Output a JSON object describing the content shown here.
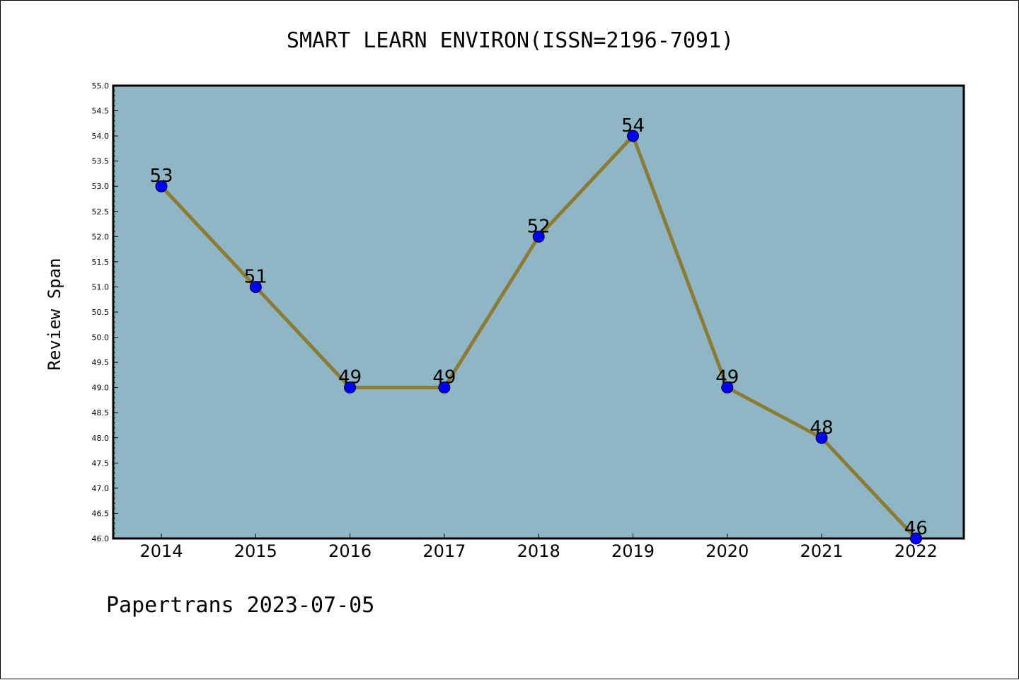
{
  "footer": "Papertrans 2023-07-05",
  "colors": {
    "plot_background": "#8fb6c4",
    "line": "#8c7b33",
    "marker": "#0000ff",
    "axes": "#000000",
    "page_background": "#ffffff"
  },
  "chart_data": {
    "type": "line",
    "title": "SMART LEARN ENVIRON(ISSN=2196-7091)",
    "xlabel": "",
    "ylabel": "Review Span",
    "categories": [
      "2014",
      "2015",
      "2016",
      "2017",
      "2018",
      "2019",
      "2020",
      "2021",
      "2022"
    ],
    "values": [
      53,
      51,
      49,
      49,
      52,
      54,
      49,
      48,
      46
    ],
    "data_labels": [
      "53",
      "51",
      "49",
      "49",
      "52",
      "54",
      "49",
      "48",
      "46"
    ],
    "ylim": [
      46.0,
      55.0
    ],
    "yticks": [
      "46.0",
      "46.5",
      "47.0",
      "47.5",
      "48.0",
      "48.5",
      "49.0",
      "49.5",
      "50.0",
      "50.5",
      "51.0",
      "51.5",
      "52.0",
      "52.5",
      "53.0",
      "53.5",
      "54.0",
      "54.5",
      "55.0"
    ],
    "grid": false,
    "legend": "none"
  }
}
